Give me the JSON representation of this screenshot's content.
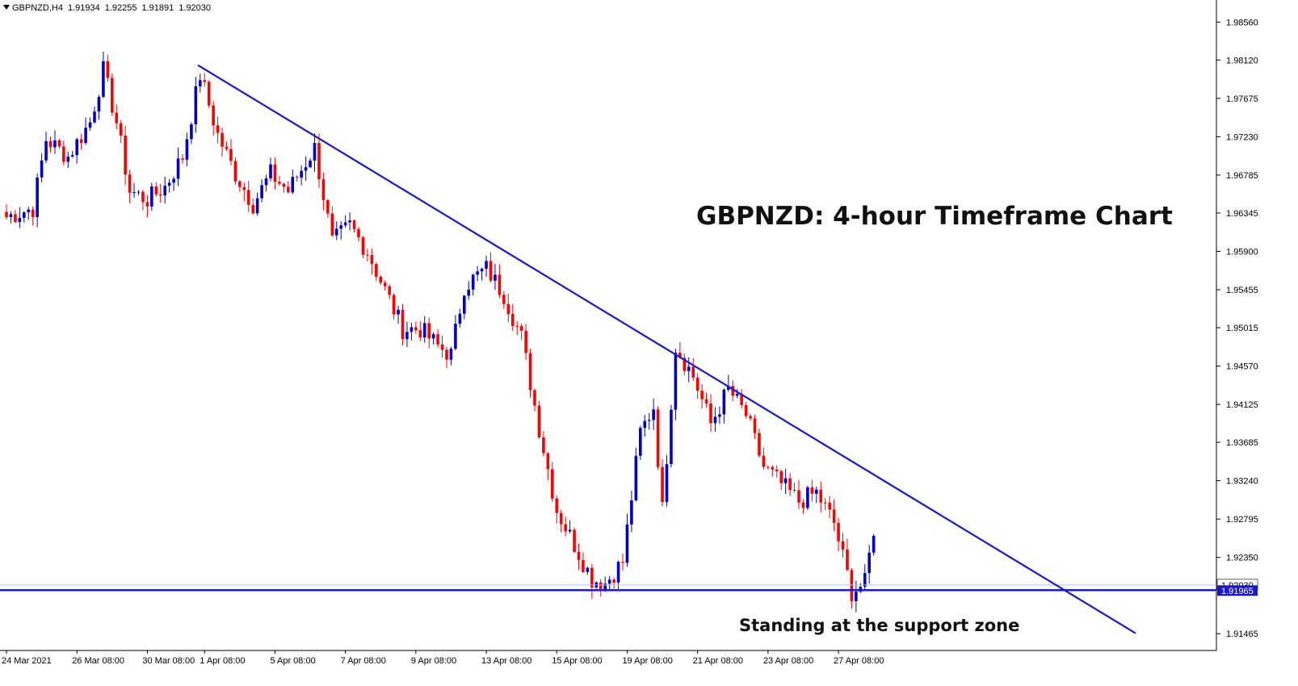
{
  "header": {
    "symbol_tf": "GBPNZD,H4",
    "open": "1.91934",
    "high": "1.92255",
    "low": "1.91891",
    "close": "1.92030"
  },
  "colors": {
    "bull": "#0000cd",
    "bear": "#ff0000",
    "trendline": "#1a1acc",
    "support": "#1a1acc",
    "price_line": "#aac4e0",
    "axis": "#000000"
  },
  "chart_data": {
    "type": "candlestick",
    "symbol": "GBPNZD",
    "timeframe": "H4",
    "title": "GBPNZD: 4-hour Timeframe Chart",
    "annotation": "Standing at the support zone",
    "y_ticks": [
      "1.98560",
      "1.98120",
      "1.97675",
      "1.97230",
      "1.96785",
      "1.96345",
      "1.95900",
      "1.95455",
      "1.95015",
      "1.94570",
      "1.94125",
      "1.93685",
      "1.93240",
      "1.92795",
      "1.92350",
      "1.91465"
    ],
    "ylim": [
      1.9127,
      1.9876
    ],
    "x_labels": [
      "24 Mar 2021",
      "26 Mar 08:00",
      "30 Mar 08:00",
      "1 Apr 08:00",
      "5 Apr 08:00",
      "7 Apr 08:00",
      "9 Apr 08:00",
      "13 Apr 08:00",
      "15 Apr 08:00",
      "19 Apr 08:00",
      "21 Apr 08:00",
      "23 Apr 08:00",
      "27 Apr 08:00"
    ],
    "x_label_positions": [
      0,
      16,
      32,
      45,
      61,
      77,
      93,
      109,
      125,
      141,
      157,
      173,
      189
    ],
    "bar_count": 198,
    "current_price": "1.92030",
    "support_price": "1.91965",
    "support_level": 1.9197,
    "trendline": {
      "start_bar": 43.5,
      "start_price": 1.9806,
      "end_bar": 256.5,
      "end_price": 1.9147
    },
    "anchors": [
      [
        0,
        1.963
      ],
      [
        6,
        1.964
      ],
      [
        9,
        1.972
      ],
      [
        14,
        1.97
      ],
      [
        19,
        1.974
      ],
      [
        22,
        1.98
      ],
      [
        25,
        1.974
      ],
      [
        28,
        1.966
      ],
      [
        32,
        1.965
      ],
      [
        36,
        1.9665
      ],
      [
        40,
        1.97
      ],
      [
        44,
        1.9795
      ],
      [
        48,
        1.9725
      ],
      [
        52,
        1.968
      ],
      [
        56,
        1.9645
      ],
      [
        60,
        1.968
      ],
      [
        64,
        1.966
      ],
      [
        70,
        1.971
      ],
      [
        74,
        1.96
      ],
      [
        78,
        1.962
      ],
      [
        82,
        1.959
      ],
      [
        86,
        1.9545
      ],
      [
        90,
        1.95
      ],
      [
        94,
        1.95
      ],
      [
        98,
        1.948
      ],
      [
        101,
        1.947
      ],
      [
        104,
        1.955
      ],
      [
        109,
        1.957
      ],
      [
        113,
        1.954
      ],
      [
        117,
        1.949
      ],
      [
        121,
        1.9385
      ],
      [
        125,
        1.929
      ],
      [
        129,
        1.925
      ],
      [
        133,
        1.921
      ],
      [
        136,
        1.9205
      ],
      [
        140,
        1.923
      ],
      [
        144,
        1.938
      ],
      [
        147,
        1.941
      ],
      [
        149,
        1.929
      ],
      [
        152,
        1.948
      ],
      [
        156,
        1.9445
      ],
      [
        160,
        1.939
      ],
      [
        164,
        1.943
      ],
      [
        168,
        1.94
      ],
      [
        172,
        1.934
      ],
      [
        176,
        1.932
      ],
      [
        180,
        1.93
      ],
      [
        184,
        1.931
      ],
      [
        188,
        1.9275
      ],
      [
        192,
        1.9195
      ],
      [
        195,
        1.9205
      ],
      [
        198,
        1.93
      ],
      [
        201,
        1.922
      ],
      [
        204,
        1.932
      ],
      [
        208,
        1.921
      ],
      [
        210,
        1.9203
      ]
    ]
  }
}
